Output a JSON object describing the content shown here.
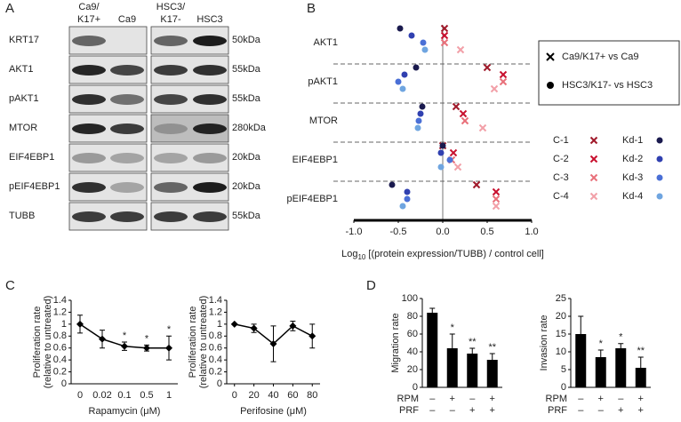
{
  "panel_labels": [
    "A",
    "B",
    "C",
    "D"
  ],
  "blot": {
    "columns": [
      [
        "Ca9/",
        "K17+"
      ],
      [
        "Ca9"
      ],
      [
        "HSC3/",
        "K17-"
      ],
      [
        "HSC3"
      ]
    ],
    "rows": [
      {
        "protein": "KRT17",
        "size": "50kDa"
      },
      {
        "protein": "AKT1",
        "size": "55kDa"
      },
      {
        "protein": "pAKT1",
        "size": "55kDa"
      },
      {
        "protein": "MTOR",
        "size": "280kDa"
      },
      {
        "protein": "EIF4EBP1",
        "size": "20kDa"
      },
      {
        "protein": "pEIF4EBP1",
        "size": "20kDa"
      },
      {
        "protein": "TUBB",
        "size": "55kDa"
      }
    ]
  },
  "chart_data": [
    {
      "type": "dotplot",
      "categories": [
        "AKT1",
        "pAKT1",
        "MTOR",
        "EIF4EBP1",
        "pEIF4EBP1"
      ],
      "xlim": [
        -1,
        1
      ],
      "xticks": [
        {
          "value": -1,
          "label": "-1.0"
        },
        {
          "value": -0.5,
          "label": "-0.5"
        },
        {
          "value": 0,
          "label": "0.0"
        },
        {
          "value": 0.5,
          "label": "0.5"
        },
        {
          "value": 1,
          "label": "1.0"
        }
      ],
      "xlabel": [
        "Log",
        "10",
        "[(protein expression/TUBB) / control cell]"
      ],
      "marker_legend": [
        {
          "label": "Ca9/K17+ vs Ca9",
          "marker": "x"
        },
        {
          "label": "HSC3/K17- vs HSC3",
          "marker": "circle"
        }
      ],
      "series": [
        {
          "name": "C-1",
          "color": "#a0192a",
          "marker": "x",
          "values": [
            0.02,
            0.5,
            0.15,
            0.0,
            0.38
          ]
        },
        {
          "name": "C-2",
          "color": "#c8102e",
          "marker": "x",
          "values": [
            0.02,
            0.68,
            0.23,
            0.12,
            0.6
          ]
        },
        {
          "name": "C-3",
          "color": "#e8707a",
          "marker": "x",
          "values": [
            0.02,
            0.68,
            0.25,
            0.1,
            0.6
          ]
        },
        {
          "name": "C-4",
          "color": "#f2a0a8",
          "marker": "x",
          "values": [
            0.2,
            0.58,
            0.45,
            0.17,
            0.6
          ]
        },
        {
          "name": "Kd-1",
          "color": "#1a1a4e",
          "marker": "circle",
          "values": [
            -0.48,
            -0.3,
            -0.23,
            0.0,
            -0.57
          ]
        },
        {
          "name": "Kd-2",
          "color": "#3040b0",
          "marker": "circle",
          "values": [
            -0.35,
            -0.43,
            -0.25,
            -0.02,
            -0.4
          ]
        },
        {
          "name": "Kd-3",
          "color": "#4a6fd6",
          "marker": "circle",
          "values": [
            -0.22,
            -0.5,
            -0.27,
            0.08,
            -0.4
          ]
        },
        {
          "name": "Kd-4",
          "color": "#6fa5e0",
          "marker": "circle",
          "values": [
            -0.2,
            -0.45,
            -0.28,
            -0.02,
            -0.45
          ]
        }
      ]
    },
    {
      "type": "line",
      "categories": [
        "0",
        "0.02",
        "0.1",
        "0.5",
        "1"
      ],
      "values": [
        1,
        0.75,
        0.63,
        0.6,
        0.6
      ],
      "errors": [
        0.15,
        0.15,
        0.07,
        0.05,
        0.2
      ],
      "significance": [
        null,
        null,
        "*",
        "*",
        "*"
      ],
      "ylim": [
        0,
        1.4
      ],
      "yticks": [
        0,
        0.2,
        0.4,
        0.6,
        0.8,
        1,
        1.2,
        1.4
      ],
      "xlabel": "Rapamycin (μM)",
      "ylabel": [
        "Proliferation rate",
        "(relative to untreated)"
      ],
      "color": "#000000"
    },
    {
      "type": "line",
      "x": [
        0,
        20,
        40,
        60,
        80
      ],
      "values": [
        1,
        0.93,
        0.67,
        0.97,
        0.8
      ],
      "errors": [
        0,
        0.07,
        0.3,
        0.08,
        0.2
      ],
      "xlim": [
        -8,
        88
      ],
      "xticks": [
        0,
        20,
        40,
        60,
        80
      ],
      "ylim": [
        0,
        1.4
      ],
      "yticks": [
        0,
        0.2,
        0.4,
        0.6,
        0.8,
        1,
        1.2,
        1.4
      ],
      "xlabel": "Perifosine (μM)",
      "ylabel": [
        "Proliferation rate",
        "(relative to untreated)"
      ],
      "color": "#000000"
    },
    {
      "type": "bar",
      "values": [
        84,
        44,
        38,
        31
      ],
      "errors": [
        5,
        16,
        6,
        7
      ],
      "significance": [
        null,
        "*",
        "**",
        "**"
      ],
      "ylim": [
        0,
        100
      ],
      "yticks": [
        0,
        20,
        40,
        60,
        80,
        100
      ],
      "ylabel": "Migration rate",
      "color": "#000000",
      "treatments": [
        {
          "label": "RPM",
          "marks": [
            "–",
            "+",
            "–",
            "+"
          ]
        },
        {
          "label": "PRF",
          "marks": [
            "–",
            "–",
            "+",
            "+"
          ]
        }
      ]
    },
    {
      "type": "bar",
      "values": [
        15,
        8.5,
        11,
        5.5
      ],
      "errors": [
        5,
        2,
        1.3,
        3
      ],
      "significance": [
        null,
        "*",
        "*",
        "**"
      ],
      "ylim": [
        0,
        25
      ],
      "yticks": [
        0,
        5,
        10,
        15,
        20,
        25
      ],
      "ylabel": "Invasion rate",
      "color": "#000000",
      "treatments": [
        {
          "label": "RPM",
          "marks": [
            "–",
            "+",
            "–",
            "+"
          ]
        },
        {
          "label": "PRF",
          "marks": [
            "–",
            "–",
            "+",
            "+"
          ]
        }
      ]
    }
  ]
}
